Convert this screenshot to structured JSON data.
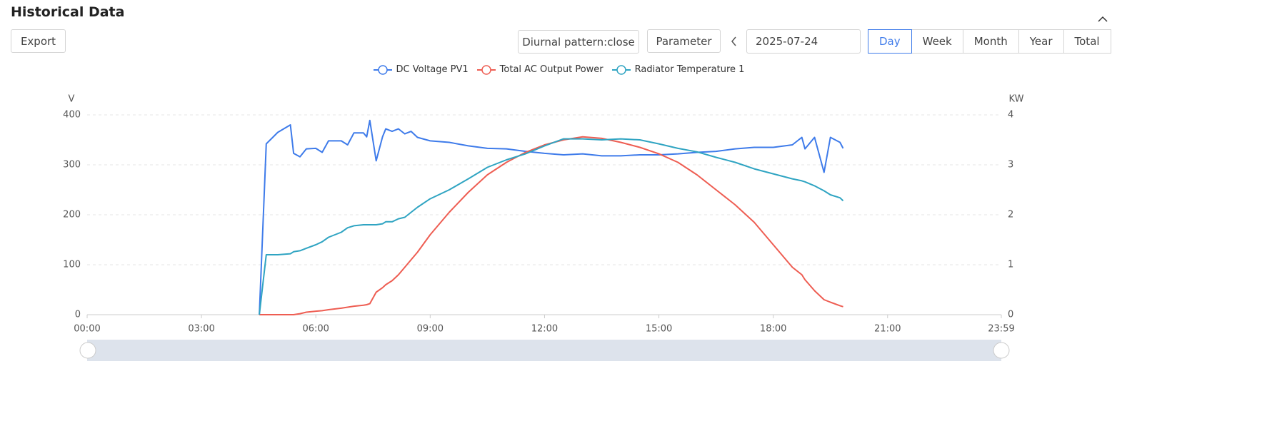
{
  "header": {
    "title": "Historical Data"
  },
  "toolbar": {
    "export": "Export",
    "diurnal": "Diurnal pattern:close",
    "parameter": "Parameter",
    "date": "2025-07-24",
    "periods": [
      "Day",
      "Week",
      "Month",
      "Year",
      "Total"
    ]
  },
  "chart_data": {
    "type": "line",
    "y_label": "V",
    "y2_label": "KW",
    "x": [
      "04:31",
      "04:42",
      "05:00",
      "05:20",
      "05:25",
      "05:35",
      "05:45",
      "06:00",
      "06:10",
      "06:20",
      "06:40",
      "06:50",
      "07:00",
      "07:15",
      "07:20",
      "07:25",
      "07:35",
      "07:45",
      "07:50",
      "08:00",
      "08:10",
      "08:20",
      "08:30",
      "08:40",
      "09:00",
      "09:30",
      "10:00",
      "10:30",
      "11:00",
      "11:30",
      "12:00",
      "12:30",
      "13:00",
      "13:30",
      "14:00",
      "14:30",
      "15:00",
      "15:30",
      "16:00",
      "16:30",
      "17:00",
      "17:30",
      "18:00",
      "18:30",
      "18:45",
      "18:50",
      "19:05",
      "19:20",
      "19:30",
      "19:45",
      "19:50"
    ],
    "series": [
      {
        "name": "DC Voltage PV1",
        "color": "#3e7bea",
        "values": [
          0,
          342,
          365,
          380,
          323,
          316,
          332,
          333,
          325,
          348,
          348,
          340,
          364,
          364,
          356,
          389,
          308,
          356,
          372,
          367,
          372,
          362,
          367,
          355,
          348,
          345,
          338,
          333,
          332,
          327,
          323,
          320,
          322,
          318,
          318,
          320,
          320,
          322,
          325,
          327,
          332,
          335,
          335,
          340,
          355,
          332,
          355,
          285,
          355,
          345,
          333
        ]
      },
      {
        "name": "Total AC Output Power",
        "color": "#ee5d52",
        "axis": "y2",
        "values": [
          0,
          0,
          0,
          0,
          0,
          0.02,
          0.05,
          0.07,
          0.08,
          0.1,
          0.13,
          0.15,
          0.17,
          0.19,
          0.2,
          0.22,
          0.45,
          0.54,
          0.6,
          0.68,
          0.8,
          0.95,
          1.1,
          1.25,
          1.6,
          2.05,
          2.45,
          2.8,
          3.05,
          3.25,
          3.4,
          3.5,
          3.56,
          3.53,
          3.45,
          3.35,
          3.22,
          3.05,
          2.8,
          2.5,
          2.2,
          1.85,
          1.4,
          0.95,
          0.8,
          0.7,
          0.48,
          0.3,
          0.25,
          0.18,
          0.16
        ]
      },
      {
        "name": "Radiator Temperature 1",
        "color": "#2fa4c2",
        "values": [
          0,
          120,
          120,
          122,
          126,
          128,
          133,
          140,
          146,
          155,
          165,
          174,
          178,
          180,
          180,
          180,
          180,
          182,
          186,
          186,
          192,
          195,
          205,
          215,
          232,
          250,
          272,
          295,
          310,
          322,
          338,
          352,
          352,
          350,
          352,
          350,
          342,
          333,
          326,
          315,
          305,
          292,
          282,
          272,
          268,
          266,
          258,
          248,
          240,
          234,
          228
        ]
      }
    ],
    "xlim": [
      "00:00",
      "23:59"
    ],
    "xticks": [
      "00:00",
      "03:00",
      "06:00",
      "09:00",
      "12:00",
      "15:00",
      "18:00",
      "21:00",
      "23:59"
    ],
    "ylim": [
      0,
      400
    ],
    "yticks": [
      0,
      100,
      200,
      300,
      400
    ],
    "y2lim": [
      0,
      4
    ],
    "y2ticks": [
      0,
      1,
      2,
      3,
      4
    ],
    "grid": true
  }
}
